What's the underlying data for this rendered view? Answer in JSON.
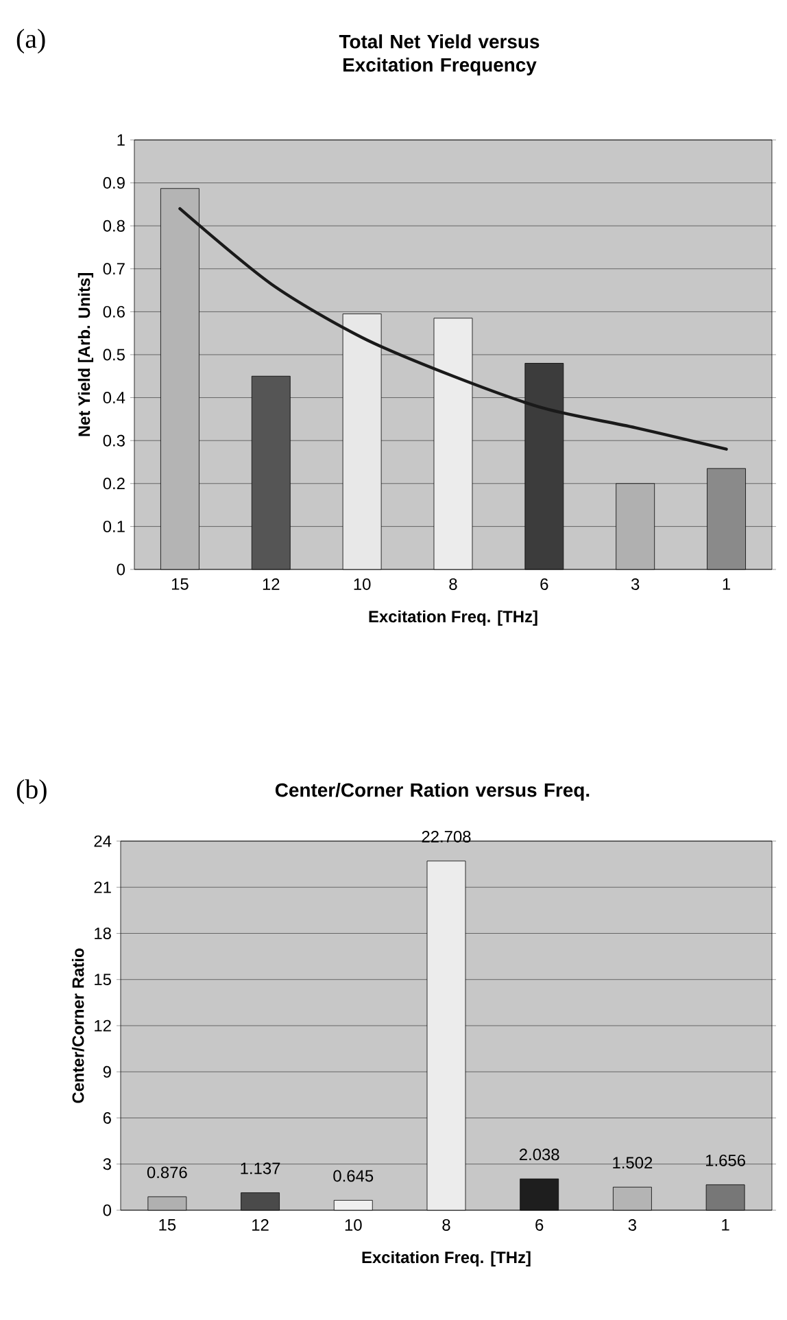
{
  "chart_data": [
    {
      "type": "bar",
      "title": "Total Net Yield versus Excitation Frequency",
      "xlabel": "Excitation Freq. [THz]",
      "ylabel": "Net Yield [Arb. Units]",
      "annotations": [
        "(a)"
      ],
      "categories": [
        "15",
        "12",
        "10",
        "8",
        "6",
        "3",
        "1"
      ],
      "series": [
        {
          "colors": [
            "#b4b4b4",
            "#555555",
            "#e8e8e8",
            "#ececec",
            "#3c3c3c",
            "#b0b0b0",
            "#8a8a8a"
          ],
          "values": [
            0.887,
            0.45,
            0.595,
            0.585,
            0.48,
            0.2,
            0.235
          ]
        },
        {
          "type": "line",
          "color": "#1a1a1a",
          "values": [
            0.84,
            0.665,
            0.54,
            0.45,
            0.375,
            0.33,
            0.28
          ]
        }
      ],
      "ylim": [
        0,
        1
      ],
      "yticks": [
        0,
        0.1,
        0.2,
        0.3,
        0.4,
        0.5,
        0.6,
        0.7,
        0.8,
        0.9,
        1
      ],
      "grid": "y"
    },
    {
      "type": "bar",
      "title": "Center/Corner Ration versus Freq.",
      "xlabel": "Excitation Freq. [THz]",
      "ylabel": "Center/Corner Ratio",
      "annotations": [
        "(b)"
      ],
      "categories": [
        "15",
        "12",
        "10",
        "8",
        "6",
        "3",
        "1"
      ],
      "series": [
        {
          "colors": [
            "#b0b0b0",
            "#4a4a4a",
            "#f0f0f0",
            "#ececec",
            "#1e1e1e",
            "#b4b4b4",
            "#777777"
          ],
          "values": [
            0.876,
            1.137,
            0.645,
            22.708,
            2.038,
            1.502,
            1.656
          ]
        }
      ],
      "data_labels": true,
      "ylim": [
        0,
        24
      ],
      "yticks": [
        0,
        3,
        6,
        9,
        12,
        15,
        18,
        21,
        24
      ],
      "grid": "y"
    }
  ]
}
